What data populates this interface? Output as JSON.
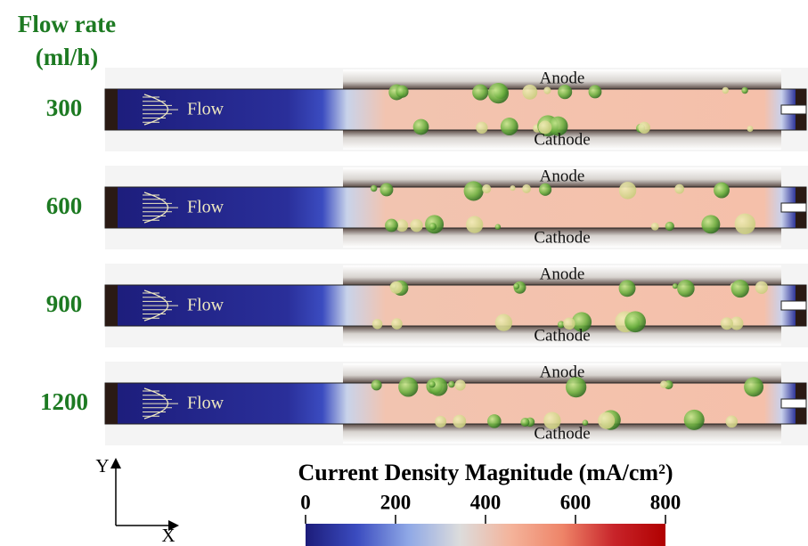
{
  "header": {
    "title": "Flow rate",
    "unit": "(ml/h)"
  },
  "rows": [
    {
      "label": "300",
      "flow": "Flow",
      "anode": "Anode",
      "cathode": "Cathode"
    },
    {
      "label": "600",
      "flow": "Flow",
      "anode": "Anode",
      "cathode": "Cathode"
    },
    {
      "label": "900",
      "flow": "Flow",
      "anode": "Anode",
      "cathode": "Cathode"
    },
    {
      "label": "1200",
      "flow": "Flow",
      "anode": "Anode",
      "cathode": "Cathode"
    }
  ],
  "axes": {
    "y": "Y",
    "x": "X"
  },
  "colorbar": {
    "title": "Current Density Magnitude (mA/cm²)",
    "lim": [
      0,
      800
    ],
    "ticks": [
      0,
      200,
      400,
      600,
      800
    ],
    "colors": [
      "#1c1c7a",
      "#3b4cc0",
      "#8fa8e6",
      "#dcdcdc",
      "#f4b39a",
      "#ee8468",
      "#c8242a",
      "#b00000"
    ]
  }
}
